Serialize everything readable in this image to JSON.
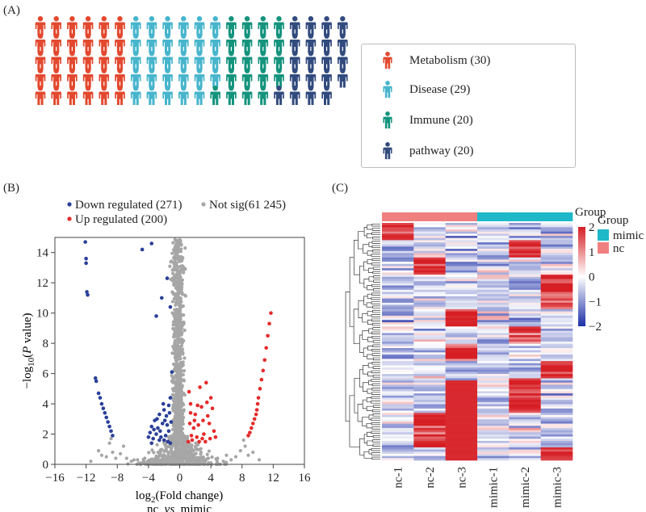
{
  "panels": {
    "a": "(A)",
    "b": "(B)",
    "c": "(C)"
  },
  "colors": {
    "metabolism": "#e2492f",
    "disease": "#47b5cc",
    "immune": "#14937d",
    "pathway": "#324b7e",
    "down": "#2a3f99",
    "up": "#e52b2b",
    "notsig": "#a6a6a6",
    "group_mimic": "#1fb8c9",
    "group_nc": "#f08080"
  },
  "chart_data": [
    {
      "type": "pictograph",
      "categories": [
        "Metabolism",
        "Disease",
        "Immune",
        "pathway"
      ],
      "values": [
        30,
        29,
        20,
        20
      ],
      "legend": [
        {
          "label": "Metabolism (30)",
          "color": "#e2492f",
          "icon": "person-icon"
        },
        {
          "label": "Disease (29)",
          "color": "#47b5cc",
          "icon": "person-icon"
        },
        {
          "label": "Immune (20)",
          "color": "#14937d",
          "icon": "person-icon"
        },
        {
          "label": "pathway (20)",
          "color": "#324b7e",
          "icon": "person-icon"
        }
      ]
    },
    {
      "type": "scatter",
      "subtype": "volcano",
      "xlabel_main": "log",
      "xlabel_sub": "2",
      "xlabel_rest": "(Fold change)",
      "xlabel_line2": [
        "nc",
        "_",
        "vs",
        "_",
        "mimic"
      ],
      "ylabel_prefix": "−log",
      "ylabel_sub": "10",
      "ylabel_open": "(",
      "ylabel_italic": "P",
      "ylabel_rest": " value)",
      "xlim": [
        -16,
        16
      ],
      "ylim": [
        0,
        15
      ],
      "xticks": [
        -16,
        -12,
        -8,
        -4,
        0,
        4,
        8,
        12,
        16
      ],
      "yticks": [
        0,
        2,
        4,
        6,
        8,
        10,
        12,
        14
      ],
      "legend": [
        {
          "label": "Down regulated (271)",
          "color": "#2a3f99"
        },
        {
          "label": "Not sig(61 245)",
          "color": "#a6a6a6"
        },
        {
          "label": "Up regulated (200)",
          "color": "#e52b2b"
        }
      ],
      "series": [
        {
          "name": "Down regulated (271)",
          "points": [
            [
              -12.1,
              14.7
            ],
            [
              -12.0,
              13.6
            ],
            [
              -12.0,
              13.3
            ],
            [
              -11.9,
              11.4
            ],
            [
              -11.8,
              11.2
            ],
            [
              -10.8,
              5.7
            ],
            [
              -10.7,
              5.5
            ],
            [
              -10.4,
              4.7
            ],
            [
              -10.2,
              4.4
            ],
            [
              -10.0,
              4.0
            ],
            [
              -9.8,
              3.7
            ],
            [
              -9.6,
              3.4
            ],
            [
              -9.4,
              3.1
            ],
            [
              -9.2,
              2.8
            ],
            [
              -9.0,
              2.5
            ],
            [
              -8.8,
              2.2
            ],
            [
              -8.6,
              1.9
            ],
            [
              -4.8,
              14.2
            ],
            [
              -3.6,
              14.6
            ],
            [
              -3.0,
              9.8
            ],
            [
              -2.3,
              11.0
            ],
            [
              -1.6,
              12.3
            ],
            [
              -1.2,
              10.4
            ],
            [
              -1.0,
              6.1
            ],
            [
              -1.2,
              4.4
            ],
            [
              -1.3,
              3.4
            ],
            [
              -2.0,
              3.6
            ],
            [
              -2.6,
              3.3
            ],
            [
              -3.2,
              2.9
            ],
            [
              -3.6,
              2.5
            ],
            [
              -3.8,
              2.1
            ],
            [
              -4.0,
              1.8
            ],
            [
              -2.2,
              2.7
            ],
            [
              -1.6,
              2.6
            ],
            [
              -3.0,
              2.0
            ],
            [
              -2.4,
              1.8
            ],
            [
              -1.8,
              1.9
            ],
            [
              -1.4,
              2.2
            ],
            [
              -2.8,
              2.4
            ],
            [
              -3.4,
              1.7
            ],
            [
              -2.0,
              1.6
            ],
            [
              -1.5,
              1.5
            ],
            [
              -2.6,
              1.6
            ],
            [
              -3.6,
              1.4
            ],
            [
              -1.2,
              1.4
            ],
            [
              -1.9,
              2.9
            ],
            [
              -2.5,
              2.2
            ],
            [
              -3.3,
              2.3
            ],
            [
              -1.7,
              3.2
            ],
            [
              -2.9,
              3.0
            ],
            [
              -1.1,
              2.8
            ],
            [
              -1.4,
              3.9
            ],
            [
              -2.1,
              4.0
            ]
          ]
        },
        {
          "name": "Up regulated (200)",
          "points": [
            [
              11.7,
              10.0
            ],
            [
              11.5,
              9.3
            ],
            [
              11.3,
              8.5
            ],
            [
              11.1,
              7.7
            ],
            [
              10.9,
              6.9
            ],
            [
              10.7,
              6.2
            ],
            [
              10.5,
              5.6
            ],
            [
              10.3,
              5.0
            ],
            [
              10.1,
              4.4
            ],
            [
              10.0,
              4.0
            ],
            [
              9.9,
              3.6
            ],
            [
              9.8,
              3.3
            ],
            [
              9.6,
              3.0
            ],
            [
              9.4,
              2.7
            ],
            [
              9.2,
              2.4
            ],
            [
              9.0,
              2.1
            ],
            [
              8.8,
              1.9
            ],
            [
              1.2,
              4.8
            ],
            [
              1.4,
              4.0
            ],
            [
              2.6,
              5.1
            ],
            [
              3.4,
              5.4
            ],
            [
              4.0,
              4.4
            ],
            [
              4.2,
              3.7
            ],
            [
              3.6,
              3.2
            ],
            [
              3.0,
              2.9
            ],
            [
              2.4,
              2.6
            ],
            [
              1.8,
              2.4
            ],
            [
              1.3,
              2.7
            ],
            [
              2.0,
              3.3
            ],
            [
              2.8,
              3.8
            ],
            [
              3.8,
              2.7
            ],
            [
              4.4,
              2.2
            ],
            [
              1.5,
              1.9
            ],
            [
              2.2,
              1.8
            ],
            [
              3.1,
              2.0
            ],
            [
              3.9,
              1.7
            ],
            [
              1.6,
              1.6
            ],
            [
              2.5,
              1.5
            ],
            [
              3.3,
              1.5
            ],
            [
              1.1,
              1.5
            ],
            [
              2.9,
              1.7
            ],
            [
              1.9,
              2.9
            ],
            [
              1.4,
              3.4
            ],
            [
              2.3,
              3.9
            ],
            [
              4.6,
              1.8
            ],
            [
              3.5,
              4.1
            ]
          ]
        }
      ]
    },
    {
      "type": "heatmap",
      "columns": [
        "nc-1",
        "nc-2",
        "nc-3",
        "mimic-1",
        "mimic-2",
        "mimic-3"
      ],
      "groups": [
        "nc",
        "nc",
        "nc",
        "mimic",
        "mimic",
        "mimic"
      ],
      "legend_title": "Group",
      "group_legend": [
        {
          "label": "mimic",
          "color": "#1fb8c9"
        },
        {
          "label": "nc",
          "color": "#f08080"
        }
      ],
      "colorbar_ticks": [
        2,
        1,
        0,
        -1,
        -2
      ],
      "colorbar_labels": [
        "2",
        "1",
        "0",
        "−1",
        "−2"
      ],
      "zlim": [
        -2,
        2
      ],
      "colors": {
        "low": "#1c2fa8",
        "mid": "#ffffff",
        "high": "#d61e24"
      }
    }
  ]
}
